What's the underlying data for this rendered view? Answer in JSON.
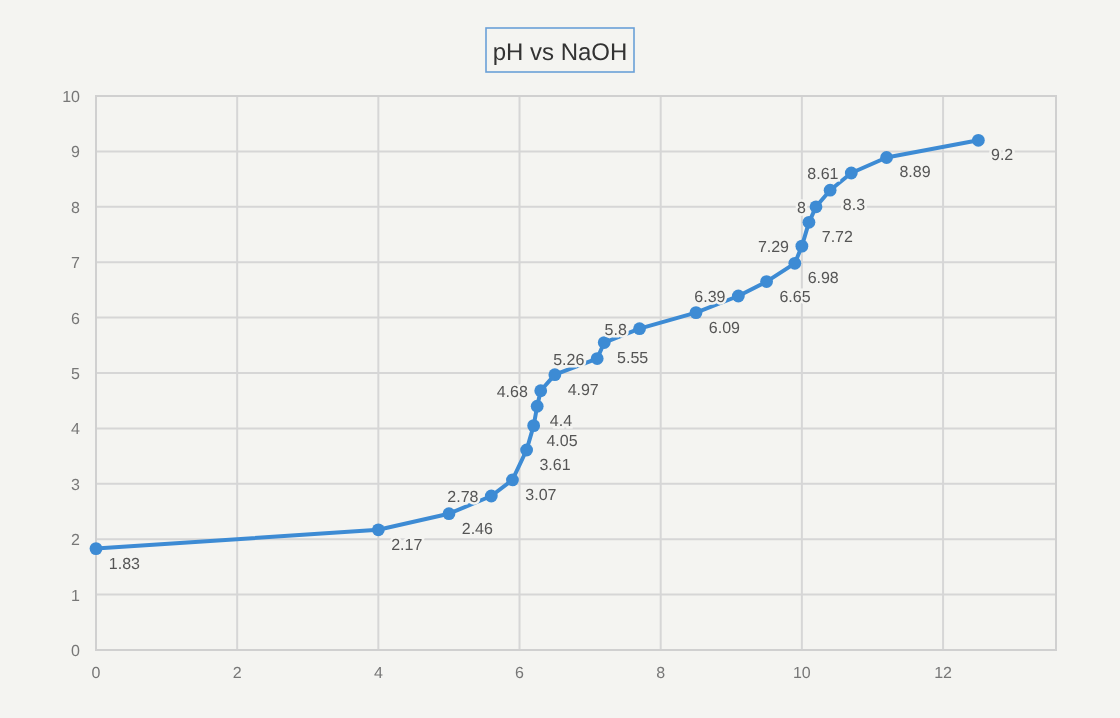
{
  "chart_data": {
    "type": "line",
    "title": "pH vs NaOH",
    "x": [
      0,
      4,
      5,
      5.6,
      5.9,
      6.1,
      6.2,
      6.25,
      6.3,
      6.5,
      7.1,
      7.2,
      7.7,
      8.5,
      9.1,
      9.5,
      9.9,
      10,
      10.1,
      10.2,
      10.4,
      10.7,
      11.2,
      12.5
    ],
    "series": [
      {
        "color": "#3d8bd4",
        "values": [
          1.83,
          2.17,
          2.46,
          2.78,
          3.07,
          3.61,
          4.05,
          4.4,
          4.68,
          4.97,
          5.26,
          5.55,
          5.8,
          6.09,
          6.39,
          6.65,
          6.98,
          7.29,
          7.72,
          8,
          8.3,
          8.61,
          8.89,
          9.2
        ]
      }
    ],
    "xlim": [
      0,
      13.6
    ],
    "xticks": [
      0,
      2,
      4,
      6,
      8,
      10,
      12
    ],
    "ylim": [
      0,
      10
    ],
    "yticks": [
      0,
      1,
      2,
      3,
      4,
      5,
      6,
      7,
      8,
      9,
      10
    ],
    "grid": true,
    "marker": "circle",
    "line_style": "solid",
    "data_labels": true
  }
}
